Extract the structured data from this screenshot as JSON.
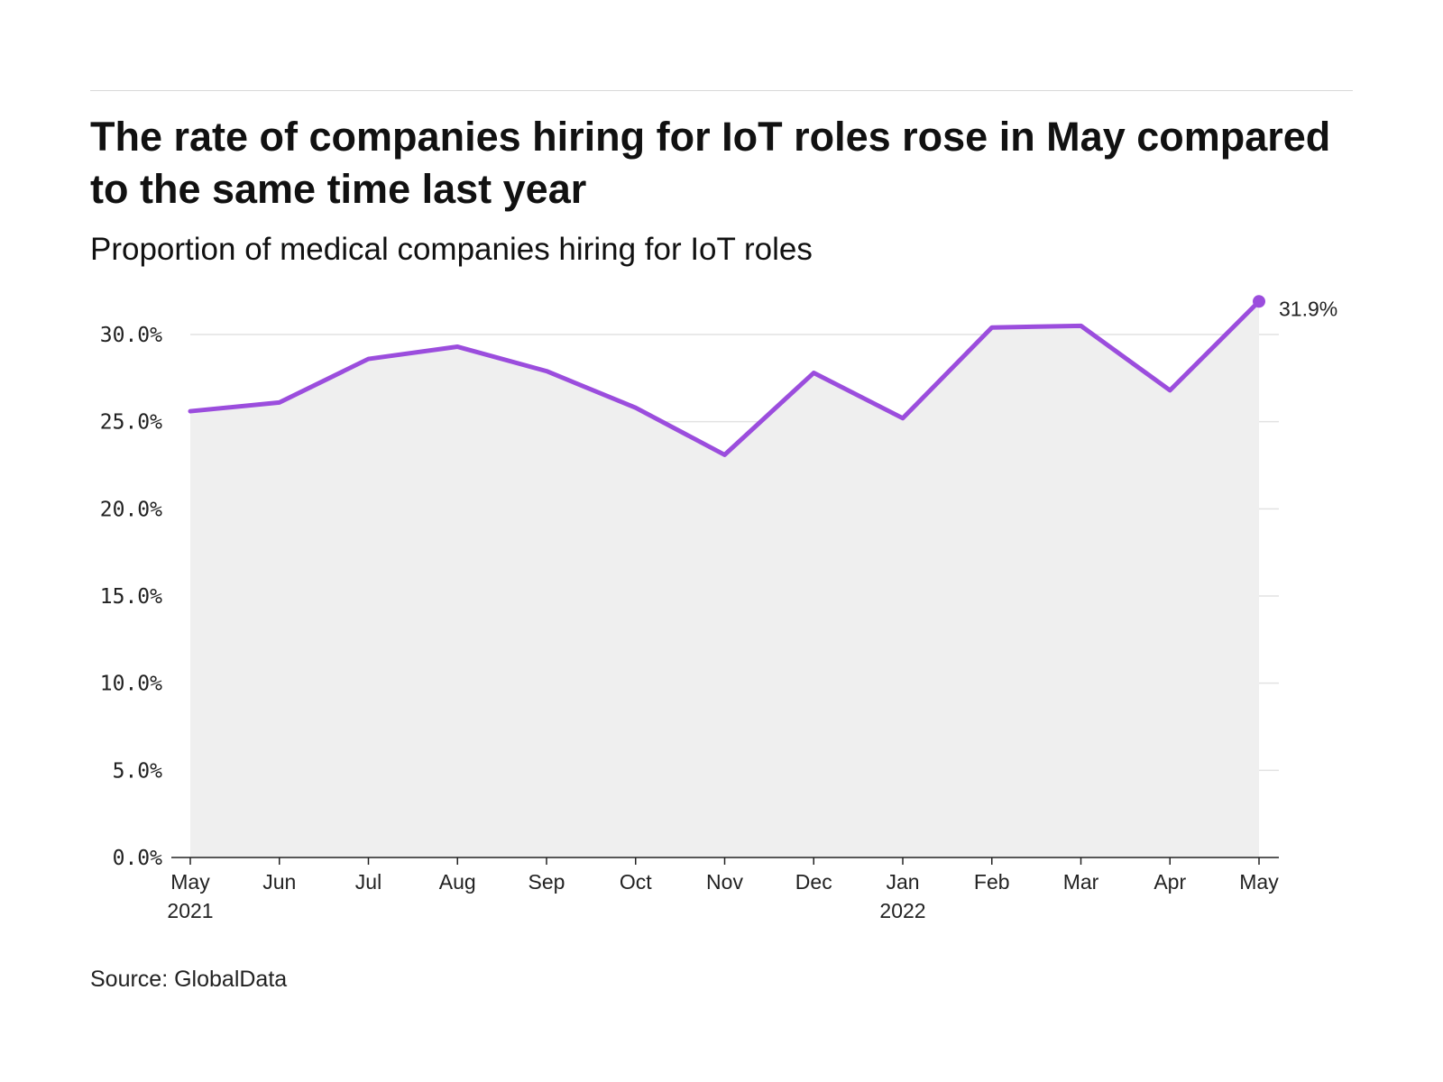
{
  "header": {
    "title": "The rate of companies hiring for IoT roles rose in May compared to the same time last year",
    "subtitle": "Proportion of medical companies hiring for IoT roles"
  },
  "footer": {
    "source": "Source: GlobalData"
  },
  "colors": {
    "line": "#9b4ddd",
    "area": "#efefef",
    "grid": "#e2e2e2",
    "axis": "#222222"
  },
  "chart_data": {
    "type": "area",
    "title": "The rate of companies hiring for IoT roles rose in May compared to the same time last year",
    "subtitle": "Proportion of medical companies hiring for IoT roles",
    "xlabel": "",
    "ylabel": "",
    "x": [
      "May 2021",
      "Jun 2021",
      "Jul 2021",
      "Aug 2021",
      "Sep 2021",
      "Oct 2021",
      "Nov 2021",
      "Dec 2021",
      "Jan 2022",
      "Feb 2022",
      "Mar 2022",
      "Apr 2022",
      "May 2022"
    ],
    "x_tick_labels": [
      {
        "line1": "May",
        "line2": "2021"
      },
      {
        "line1": "Jun",
        "line2": ""
      },
      {
        "line1": "Jul",
        "line2": ""
      },
      {
        "line1": "Aug",
        "line2": ""
      },
      {
        "line1": "Sep",
        "line2": ""
      },
      {
        "line1": "Oct",
        "line2": ""
      },
      {
        "line1": "Nov",
        "line2": ""
      },
      {
        "line1": "Dec",
        "line2": ""
      },
      {
        "line1": "Jan",
        "line2": "2022"
      },
      {
        "line1": "Feb",
        "line2": ""
      },
      {
        "line1": "Mar",
        "line2": ""
      },
      {
        "line1": "Apr",
        "line2": ""
      },
      {
        "line1": "May",
        "line2": ""
      }
    ],
    "series": [
      {
        "values": [
          25.6,
          26.1,
          28.6,
          29.3,
          27.9,
          25.8,
          23.1,
          27.8,
          25.2,
          30.4,
          30.5,
          26.8,
          31.9
        ]
      }
    ],
    "ylim": [
      0,
      30
    ],
    "y_ticks": [
      0,
      5,
      10,
      15,
      20,
      25,
      30
    ],
    "y_tick_labels": [
      "0.0%",
      "5.0%",
      "10.0%",
      "15.0%",
      "20.0%",
      "25.0%",
      "30.0%"
    ],
    "end_label": "31.9%",
    "grid": true,
    "legend": "none"
  }
}
